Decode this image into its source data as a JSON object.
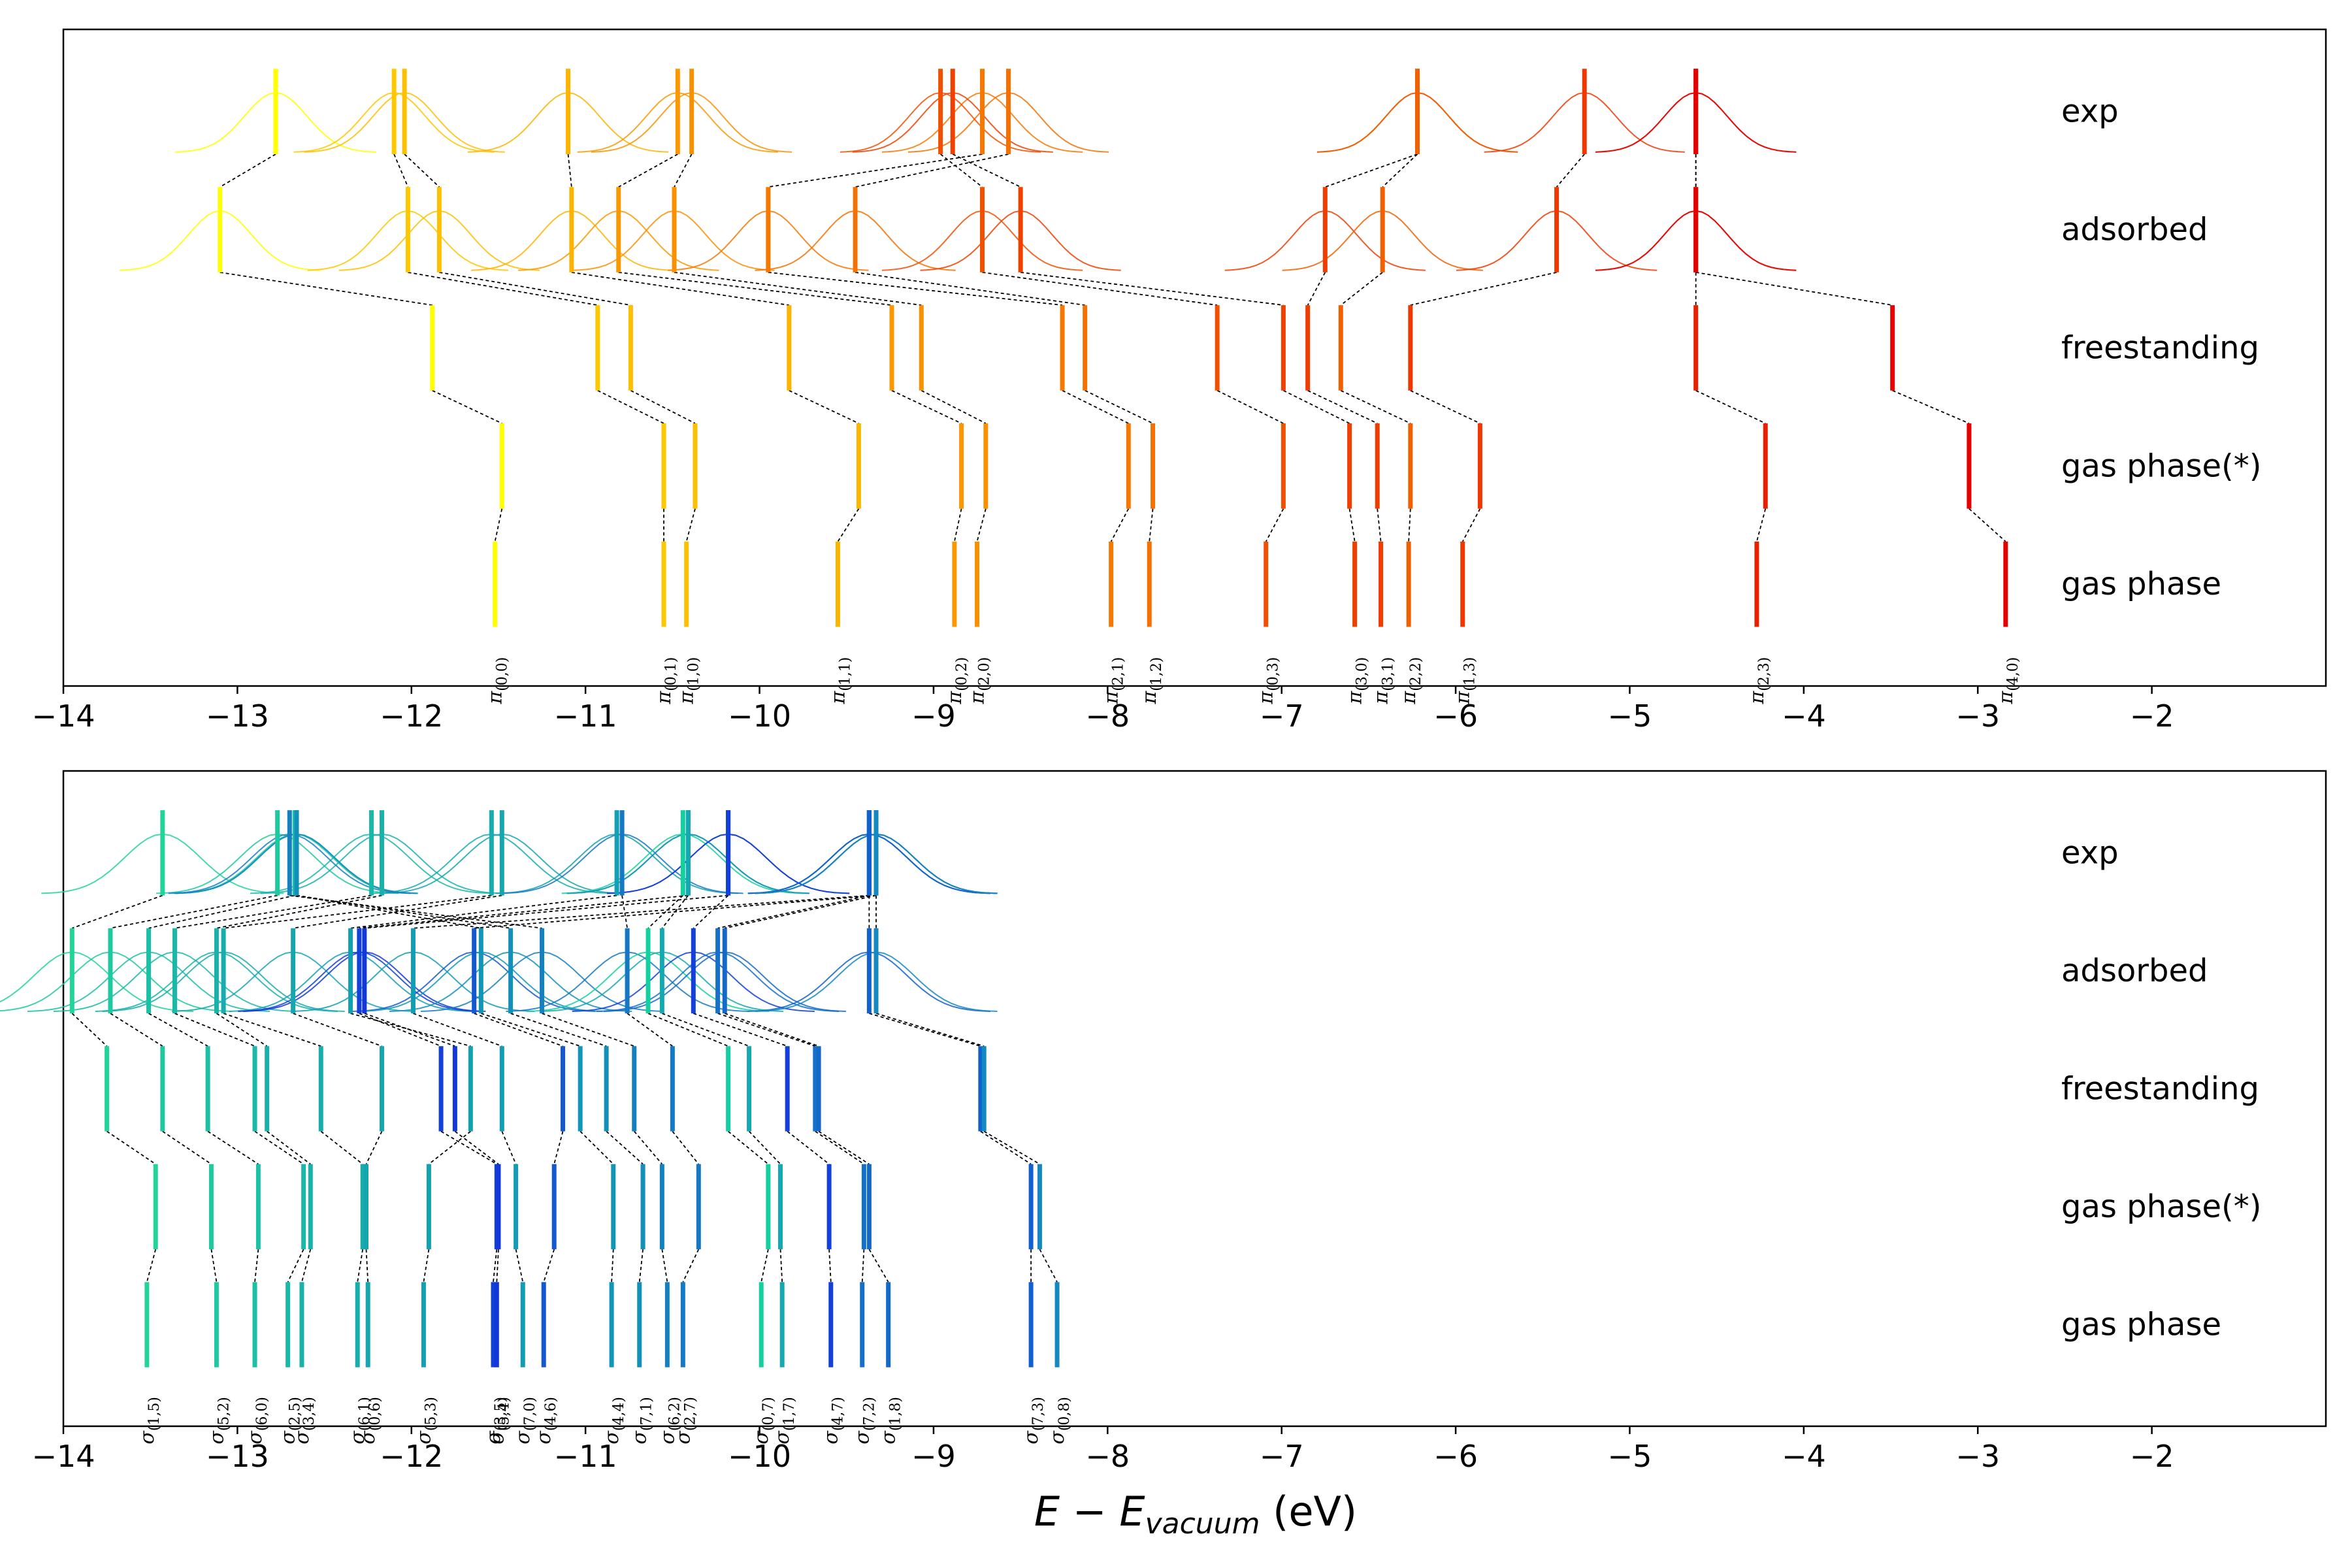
{
  "chart_data": {
    "type": "energy-level diagram",
    "x_axis": {
      "label_main": "E − E",
      "label_subscript": "vacuum",
      "label_unit": " (eV)",
      "xlim": [
        -14,
        -1
      ],
      "ticks": [
        -14,
        -13,
        -12,
        -11,
        -10,
        -9,
        -8,
        -7,
        -6,
        -5,
        -4,
        -3,
        -2
      ],
      "tick_labels": [
        "−14",
        "−13",
        "−12",
        "−11",
        "−10",
        "−9",
        "−8",
        "−7",
        "−6",
        "−5",
        "−4",
        "−3",
        "−2"
      ]
    },
    "row_labels": [
      "exp",
      "adsorbed",
      "freestanding",
      "gas phase(*)",
      "gas phase"
    ],
    "panels": [
      {
        "name": "pi-panel",
        "orbital_symbol": "π",
        "levels": [
          {
            "id": "(0,0)",
            "color": "#ffff00",
            "gas": -11.52,
            "gas_star": -11.48,
            "free": -11.88,
            "ads": -13.1,
            "exp": -12.78,
            "peak": 1.0
          },
          {
            "id": "(0,1)",
            "color": "#fdc800",
            "gas": -10.55,
            "gas_star": -10.55,
            "free": -10.93,
            "ads": -12.02,
            "exp": -12.1,
            "peak": 1.0
          },
          {
            "id": "(1,0)",
            "color": "#fdc000",
            "gas": -10.42,
            "gas_star": -10.37,
            "free": -10.74,
            "ads": -11.84,
            "exp": -12.04,
            "peak": 1.0
          },
          {
            "id": "(1,1)",
            "color": "#fbb400",
            "gas": -9.55,
            "gas_star": -9.43,
            "free": -9.83,
            "ads": -11.08,
            "exp": -11.1,
            "peak": 1.0
          },
          {
            "id": "(0,2)",
            "color": "#f99800",
            "gas": -8.88,
            "gas_star": -8.84,
            "free": -9.24,
            "ads": -10.81,
            "exp": -10.47,
            "peak": 1.0
          },
          {
            "id": "(2,0)",
            "color": "#f99000",
            "gas": -8.75,
            "gas_star": -8.7,
            "free": -9.07,
            "ads": -10.49,
            "exp": -10.39,
            "peak": 1.0
          },
          {
            "id": "(2,1)",
            "color": "#f57800",
            "gas": -7.98,
            "gas_star": -7.88,
            "free": -8.26,
            "ads": -9.95,
            "exp": -8.72,
            "peak": 1.0
          },
          {
            "id": "(1,2)",
            "color": "#f47000",
            "gas": -7.76,
            "gas_star": -7.74,
            "free": -8.13,
            "ads": -9.45,
            "exp": -8.57,
            "peak": 1.0
          },
          {
            "id": "(0,3)",
            "color": "#f15000",
            "gas": -7.09,
            "gas_star": -6.99,
            "free": -7.37,
            "ads": -8.72,
            "exp": -8.96,
            "peak": 1.0
          },
          {
            "id": "(3,0)",
            "color": "#ef4000",
            "gas": -6.58,
            "gas_star": -6.61,
            "free": -6.99,
            "ads": -8.5,
            "exp": -8.89,
            "peak": 1.0
          },
          {
            "id": "(3,1)",
            "color": "#ef3c00",
            "gas": -6.43,
            "gas_star": -6.45,
            "free": -6.85,
            "ads": -6.75,
            "exp": -6.22,
            "peak": 1.0
          },
          {
            "id": "(2,2)",
            "color": "#f06000",
            "gas": -6.27,
            "gas_star": -6.26,
            "free": -6.66,
            "ads": -6.42,
            "exp": -6.22,
            "peak": 1.0
          },
          {
            "id": "(1,3)",
            "color": "#ee3800",
            "gas": -5.96,
            "gas_star": -5.86,
            "free": -6.26,
            "ads": -5.42,
            "exp": -5.26,
            "peak": 1.0
          },
          {
            "id": "(2,3)",
            "color": "#e82000",
            "gas": -4.27,
            "gas_star": -4.22,
            "free": -4.62,
            "ads": -4.62,
            "exp": -4.62,
            "peak": 1.0
          },
          {
            "id": "(4,0)",
            "color": "#e60000",
            "gas": -2.84,
            "gas_star": -3.05,
            "free": -3.49,
            "ads": -4.62,
            "exp": -4.62,
            "peak": 1.0
          }
        ]
      },
      {
        "name": "sigma-panel",
        "orbital_symbol": "σ",
        "levels": [
          {
            "id": "(1,5)",
            "color": "#22d49a",
            "gas": -13.52,
            "gas_star": -13.47,
            "free": -13.75,
            "ads": -13.95,
            "exp": -13.43,
            "peak": 1.0
          },
          {
            "id": "(5,2)",
            "color": "#1fc9a0",
            "gas": -13.12,
            "gas_star": -13.15,
            "free": -13.43,
            "ads": -13.73,
            "exp": -12.77,
            "peak": 1.0
          },
          {
            "id": "(6,0)",
            "color": "#1cc0a6",
            "gas": -12.9,
            "gas_star": -12.88,
            "free": -13.17,
            "ads": -13.51,
            "exp": -12.67,
            "peak": 1.0
          },
          {
            "id": "(2,5)",
            "color": "#1ab8a8",
            "gas": -12.71,
            "gas_star": -12.62,
            "free": -12.9,
            "ads": -13.36,
            "exp": -12.23,
            "peak": 1.0
          },
          {
            "id": "(3,4)",
            "color": "#18b2ab",
            "gas": -12.63,
            "gas_star": -12.58,
            "free": -12.83,
            "ads": -13.12,
            "exp": -12.17,
            "peak": 1.0
          },
          {
            "id": "(6,1)",
            "color": "#17acae",
            "gas": -12.31,
            "gas_star": -12.28,
            "free": -12.52,
            "ads": -13.08,
            "exp": -11.54,
            "peak": 1.0
          },
          {
            "id": "(0,6)",
            "color": "#16a6b0",
            "gas": -12.25,
            "gas_star": -12.26,
            "free": -12.17,
            "ads": -12.68,
            "exp": -11.48,
            "peak": 1.0
          },
          {
            "id": "(5,3)",
            "color": "#14a0b3",
            "gas": -11.93,
            "gas_star": -11.9,
            "free": -11.66,
            "ads": -12.35,
            "exp": -10.82,
            "peak": 1.0
          },
          {
            "id": "(3,5)",
            "color": "#1240d8",
            "gas": -11.53,
            "gas_star": -11.51,
            "free": -11.83,
            "ads": -12.3,
            "exp": -10.41,
            "peak": 1.0
          },
          {
            "id": "(5,4)",
            "color": "#1238d8",
            "gas": -11.51,
            "gas_star": -11.5,
            "free": -11.75,
            "ads": -12.27,
            "exp": -10.18,
            "peak": 1.0
          },
          {
            "id": "(7,0)",
            "color": "#139cb5",
            "gas": -11.36,
            "gas_star": -11.4,
            "free": -11.48,
            "ads": -11.99,
            "exp": -9.37,
            "peak": 1.0
          },
          {
            "id": "(4,6)",
            "color": "#1458d0",
            "gas": -11.24,
            "gas_star": -11.18,
            "free": -11.13,
            "ads": -11.64,
            "exp": -9.33,
            "peak": 1.0
          },
          {
            "id": "(4,4)",
            "color": "#1296b8",
            "gas": -10.85,
            "gas_star": -10.84,
            "free": -11.03,
            "ads": -11.6,
            "exp": -12.66,
            "peak": 1.0
          },
          {
            "id": "(7,1)",
            "color": "#1290ba",
            "gas": -10.69,
            "gas_star": -10.67,
            "free": -10.88,
            "ads": -11.43,
            "exp": -12.66,
            "peak": 1.0
          },
          {
            "id": "(6,2)",
            "color": "#1380c0",
            "gas": -10.53,
            "gas_star": -10.56,
            "free": -10.72,
            "ads": -11.25,
            "exp": -12.7,
            "peak": 1.0
          },
          {
            "id": "(2,7)",
            "color": "#1478c3",
            "gas": -10.44,
            "gas_star": -10.35,
            "free": -10.5,
            "ads": -10.76,
            "exp": -10.79,
            "peak": 1.0
          },
          {
            "id": "(0,7)",
            "color": "#14d0a0",
            "gas": -9.99,
            "gas_star": -9.95,
            "free": -10.18,
            "ads": -10.64,
            "exp": -10.44,
            "peak": 1.0
          },
          {
            "id": "(1,7)",
            "color": "#14a8b0",
            "gas": -9.87,
            "gas_star": -9.88,
            "free": -10.06,
            "ads": -10.56,
            "exp": -10.41,
            "peak": 1.0
          },
          {
            "id": "(4,7)",
            "color": "#1240d8",
            "gas": -9.59,
            "gas_star": -9.6,
            "free": -9.84,
            "ads": -10.38,
            "exp": -10.18,
            "peak": 1.0
          },
          {
            "id": "(7,2)",
            "color": "#1470c8",
            "gas": -9.41,
            "gas_star": -9.4,
            "free": -9.68,
            "ads": -10.24,
            "exp": -9.37,
            "peak": 1.0
          },
          {
            "id": "(1,8)",
            "color": "#1468c8",
            "gas": -9.26,
            "gas_star": -9.37,
            "free": -9.66,
            "ads": -10.2,
            "exp": -9.33,
            "peak": 1.0
          },
          {
            "id": "(7,3)",
            "color": "#1060d0",
            "gas": -8.44,
            "gas_star": -8.44,
            "free": -8.73,
            "ads": -9.37,
            "exp": -9.37,
            "peak": 1.0
          },
          {
            "id": "(0,8)",
            "color": "#1488c0",
            "gas": -8.29,
            "gas_star": -8.39,
            "free": -8.71,
            "ads": -9.33,
            "exp": -9.33,
            "peak": 1.0
          }
        ]
      }
    ]
  }
}
